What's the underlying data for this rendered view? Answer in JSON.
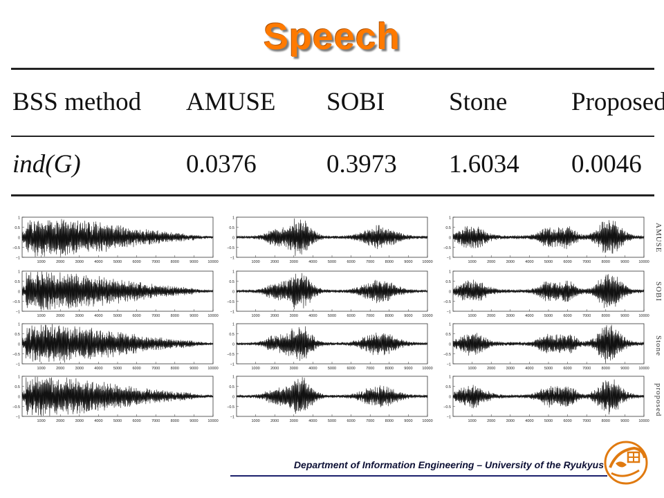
{
  "slide": {
    "title": "Speech",
    "footer": "Department of Information Engineering – University of the Ryukyus",
    "accent_color": "#ff7a00",
    "logo": "university-seal"
  },
  "table": {
    "columns": [
      "BSS method",
      "AMUSE",
      "SOBI",
      "Stone",
      "Proposed"
    ],
    "row_label": "ind(G)",
    "values": [
      "0.0376",
      "0.3973",
      "1.6034",
      "0.0046"
    ]
  },
  "chart_data": {
    "type": "line",
    "description_rows": [
      "AMUSE",
      "SOBI",
      "Stone",
      "proposed"
    ],
    "x_ticks": [
      1000,
      2000,
      3000,
      4000,
      5000,
      6000,
      7000,
      8000,
      9000,
      10000
    ],
    "y_ticks": [
      "1",
      "0.5",
      "0",
      "−0.5",
      "−1"
    ],
    "xlim": [
      0,
      10000
    ],
    "ylim": [
      -1,
      1
    ],
    "columns": 3
  }
}
